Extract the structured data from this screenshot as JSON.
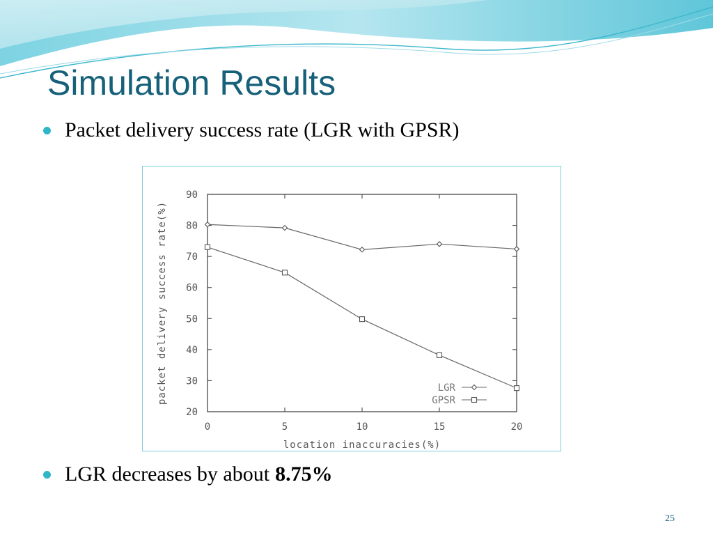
{
  "slide": {
    "title": "Simulation Results",
    "bullets": {
      "first": "Packet delivery success rate (LGR with GPSR)",
      "second_text": "LGR decreases by about",
      "second_bold": "8.75%"
    },
    "page_number": "25",
    "colors": {
      "title": "#17607a",
      "bullet_dot": "#2fb6c8",
      "chart_border": "#7fcbd8"
    }
  },
  "chart_data": {
    "type": "line",
    "title": "",
    "xlabel": "location inaccuracies(%)",
    "ylabel": "packet delivery success rate(%)",
    "x": [
      0,
      5,
      10,
      15,
      20
    ],
    "xlim": [
      0,
      20
    ],
    "ylim": [
      20,
      90
    ],
    "x_ticks": [
      "0",
      "5",
      "10",
      "15",
      "20"
    ],
    "y_ticks": [
      "20",
      "30",
      "40",
      "50",
      "60",
      "70",
      "80",
      "90"
    ],
    "grid": false,
    "legend": "bottom-right",
    "series": [
      {
        "name": "LGR",
        "marker": "diamond",
        "values": [
          80.3,
          79.2,
          72.2,
          74.0,
          72.4
        ]
      },
      {
        "name": "GPSR",
        "marker": "square",
        "values": [
          73.0,
          64.8,
          49.8,
          38.2,
          27.6
        ]
      }
    ]
  }
}
